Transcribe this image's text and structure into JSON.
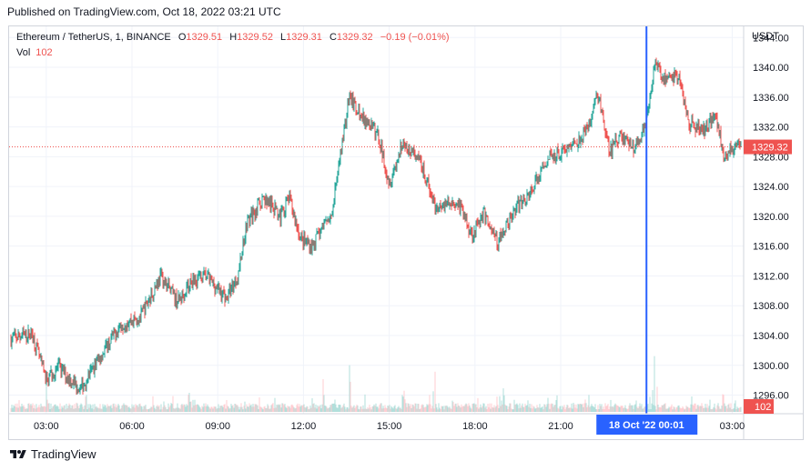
{
  "header": {
    "published": "Published on TradingView.com, Oct 18, 2022 03:21 UTC"
  },
  "legend": {
    "symbol": "Ethereum / TetherUS, 1, BINANCE",
    "open_label": "O",
    "open": "1329.51",
    "high_label": "H",
    "high": "1329.52",
    "low_label": "L",
    "low": "1329.31",
    "close_label": "C",
    "close": "1329.32",
    "change": "−0.19 (−0.01%)",
    "vol_label": "Vol",
    "vol": "102"
  },
  "axis": {
    "currency": "USDT"
  },
  "badges": {
    "price": "1329.32",
    "volume": "102",
    "crosshair_time": "18 Oct '22   00:01"
  },
  "footer": {
    "brand": "TradingView"
  },
  "colors": {
    "up": "#26a69a",
    "down": "#ef5350",
    "vol_up": "#b2dfdb",
    "vol_down": "#ffcdd2",
    "crosshair": "#2962ff",
    "grid": "#f0f3fa"
  },
  "chart_data": {
    "type": "candlestick",
    "interval": "1m",
    "y_ticks": [
      1296,
      1300,
      1304,
      1308,
      1312,
      1316,
      1320,
      1324,
      1328,
      1332,
      1336,
      1340,
      1344
    ],
    "y_tick_labels": [
      "1296.00",
      "1300.00",
      "1304.00",
      "1308.00",
      "1312.00",
      "1316.00",
      "1320.00",
      "1324.00",
      "1328.00",
      "1332.00",
      "1336.00",
      "1340.00",
      "1344.00"
    ],
    "ylim": [
      1293.5,
      1345.5
    ],
    "x_ticks": [
      "03:00",
      "06:00",
      "09:00",
      "12:00",
      "15:00",
      "18:00",
      "21:00",
      "03:00"
    ],
    "x_range_hours": [
      1.7,
      27.4
    ],
    "crosshair_hour": 24.0,
    "last_price": 1329.32,
    "last_volume": 102,
    "price_path": [
      {
        "t": 1.7,
        "p": 1303.5
      },
      {
        "t": 2.5,
        "p": 1304.3
      },
      {
        "t": 3.0,
        "p": 1298.0
      },
      {
        "t": 3.4,
        "p": 1299.8
      },
      {
        "t": 4.2,
        "p": 1296.8
      },
      {
        "t": 4.7,
        "p": 1300.0
      },
      {
        "t": 5.6,
        "p": 1305.5
      },
      {
        "t": 6.3,
        "p": 1306.5
      },
      {
        "t": 7.0,
        "p": 1312.0
      },
      {
        "t": 7.6,
        "p": 1308.5
      },
      {
        "t": 8.1,
        "p": 1311.5
      },
      {
        "t": 8.6,
        "p": 1312.0
      },
      {
        "t": 9.3,
        "p": 1309.0
      },
      {
        "t": 9.7,
        "p": 1312.0
      },
      {
        "t": 10.0,
        "p": 1319.0
      },
      {
        "t": 10.6,
        "p": 1322.5
      },
      {
        "t": 11.2,
        "p": 1320.0
      },
      {
        "t": 11.5,
        "p": 1322.5
      },
      {
        "t": 11.9,
        "p": 1317.0
      },
      {
        "t": 12.3,
        "p": 1316.0
      },
      {
        "t": 13.0,
        "p": 1320.5
      },
      {
        "t": 13.6,
        "p": 1336.0
      },
      {
        "t": 14.0,
        "p": 1333.5
      },
      {
        "t": 14.6,
        "p": 1331.0
      },
      {
        "t": 15.0,
        "p": 1324.5
      },
      {
        "t": 15.5,
        "p": 1330.0
      },
      {
        "t": 16.1,
        "p": 1327.0
      },
      {
        "t": 16.6,
        "p": 1321.5
      },
      {
        "t": 17.4,
        "p": 1322.0
      },
      {
        "t": 17.9,
        "p": 1317.5
      },
      {
        "t": 18.3,
        "p": 1320.5
      },
      {
        "t": 18.8,
        "p": 1316.5
      },
      {
        "t": 19.3,
        "p": 1320.5
      },
      {
        "t": 19.9,
        "p": 1323.0
      },
      {
        "t": 20.6,
        "p": 1328.0
      },
      {
        "t": 21.4,
        "p": 1329.5
      },
      {
        "t": 21.9,
        "p": 1331.5
      },
      {
        "t": 22.3,
        "p": 1336.5
      },
      {
        "t": 22.7,
        "p": 1328.5
      },
      {
        "t": 23.1,
        "p": 1331.0
      },
      {
        "t": 23.6,
        "p": 1329.0
      },
      {
        "t": 24.0,
        "p": 1333.0
      },
      {
        "t": 24.3,
        "p": 1341.0
      },
      {
        "t": 24.7,
        "p": 1338.0
      },
      {
        "t": 25.1,
        "p": 1339.0
      },
      {
        "t": 25.5,
        "p": 1332.5
      },
      {
        "t": 26.0,
        "p": 1331.5
      },
      {
        "t": 26.4,
        "p": 1334.0
      },
      {
        "t": 26.7,
        "p": 1328.5
      },
      {
        "t": 27.2,
        "p": 1329.3
      }
    ],
    "volume_spikes": [
      {
        "t": 3.0,
        "v": 0.4
      },
      {
        "t": 8.0,
        "v": 0.3
      },
      {
        "t": 11.0,
        "v": 0.28
      },
      {
        "t": 12.7,
        "v": 0.5
      },
      {
        "t": 13.6,
        "v": 0.9
      },
      {
        "t": 15.5,
        "v": 0.4
      },
      {
        "t": 16.6,
        "v": 0.55
      },
      {
        "t": 19.0,
        "v": 0.35
      },
      {
        "t": 22.0,
        "v": 0.45
      },
      {
        "t": 24.3,
        "v": 1.0
      },
      {
        "t": 26.7,
        "v": 0.35
      }
    ]
  }
}
